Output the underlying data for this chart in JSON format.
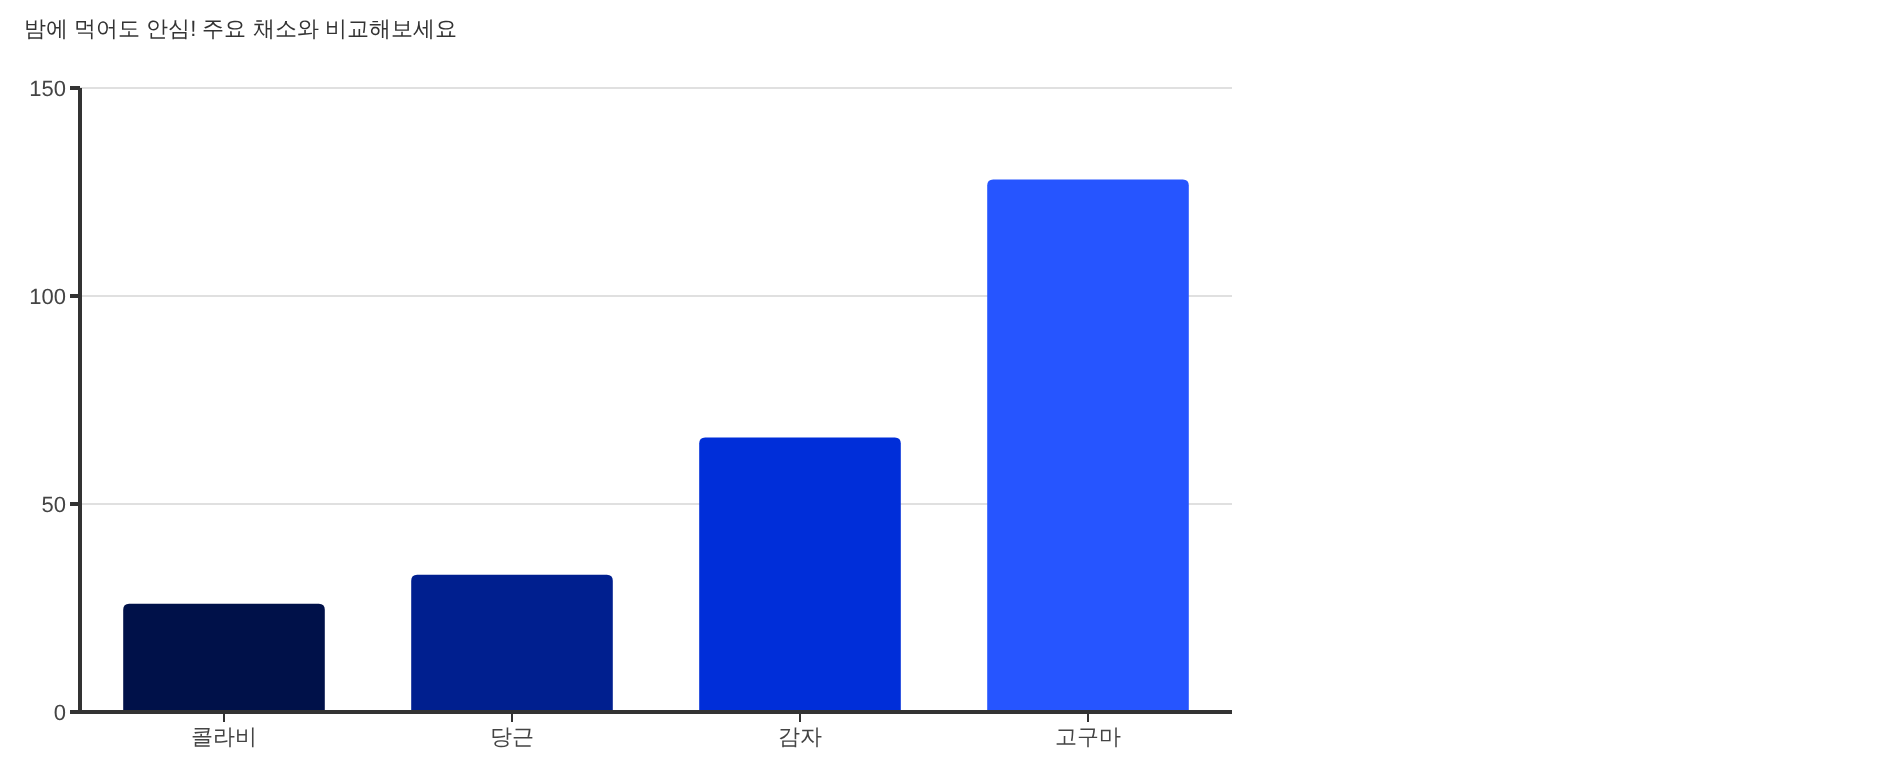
{
  "chart_data": {
    "type": "bar",
    "title": "밤에 먹어도 안심! 주요 채소와 비교해보세요",
    "categories": [
      "콜라비",
      "당근",
      "감자",
      "고구마"
    ],
    "values": [
      26,
      33,
      66,
      128
    ],
    "colors": [
      "#001149",
      "#001f8f",
      "#002ed9",
      "#2655ff"
    ],
    "ylim": [
      0,
      150
    ],
    "yticks": [
      0,
      50,
      100,
      150
    ],
    "grid": "y"
  }
}
